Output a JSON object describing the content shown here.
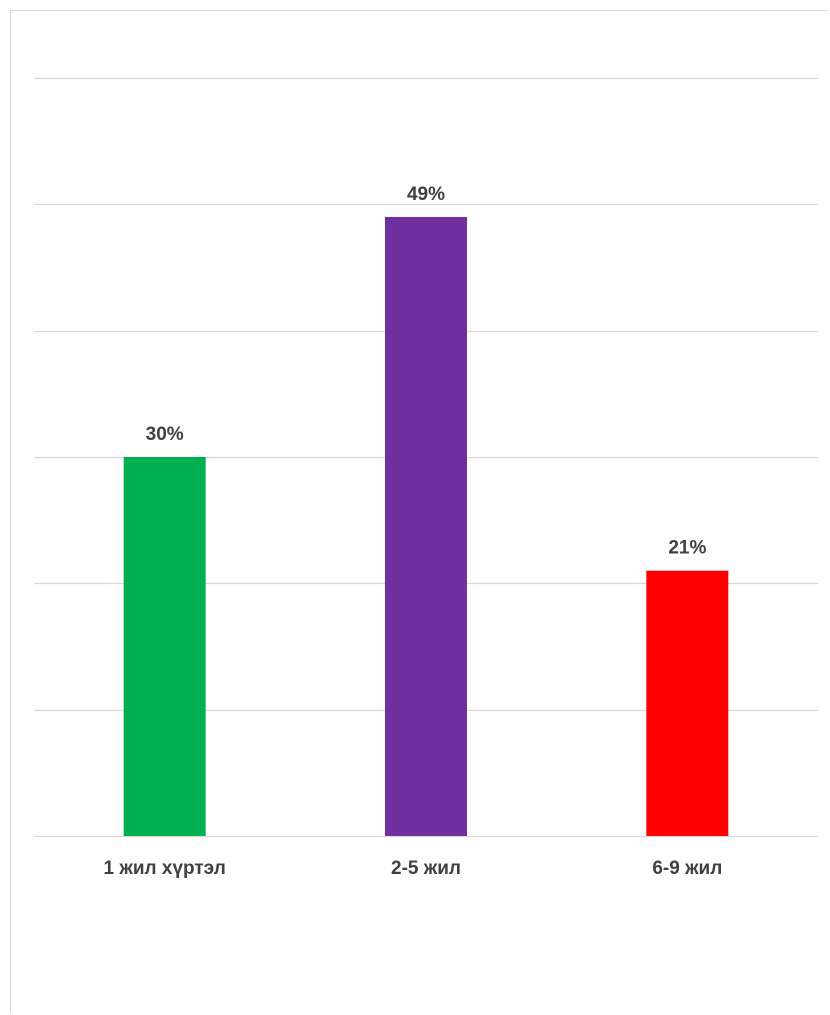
{
  "chart_data": {
    "type": "bar",
    "categories": [
      "1 жил хүртэл",
      "2-5 жил",
      "6-9 жил"
    ],
    "values": [
      30,
      49,
      21
    ],
    "value_labels": [
      "30%",
      "49%",
      "21%"
    ],
    "colors": [
      "#00b050",
      "#7030a0",
      "#ff0000"
    ],
    "title": "",
    "xlabel": "",
    "ylabel": "",
    "ylim": [
      0,
      60
    ],
    "grid": true,
    "label_color": "#404040",
    "grid_color": "#d9d9d9"
  }
}
